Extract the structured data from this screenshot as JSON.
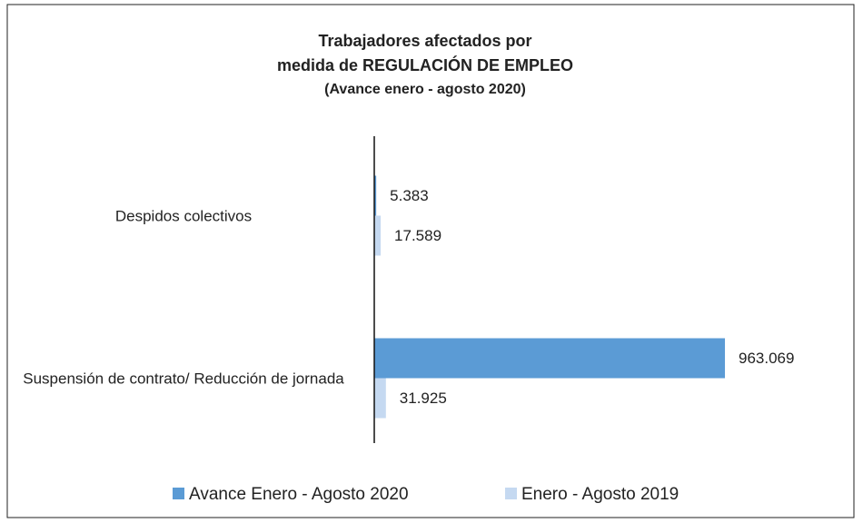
{
  "chart_data": {
    "type": "hbar",
    "title": [
      "Trabajadores afectados por",
      "medida de REGULACIÓN DE EMPLEO"
    ],
    "subtitle": "(Avance enero - agosto 2020)",
    "categories": [
      "Despidos colectivos",
      "Suspensión de contrato/ Reducción de jornada"
    ],
    "series": [
      {
        "name": "Avance Enero - Agosto 2020",
        "color": "#5b9bd5",
        "values": [
          5383,
          963069
        ],
        "value_labels": [
          "5.383",
          "963.069"
        ]
      },
      {
        "name": "Enero - Agosto 2019",
        "color": "#c5d9f1",
        "values": [
          17589,
          31925
        ],
        "value_labels": [
          "17.589",
          "31.925"
        ]
      }
    ],
    "xlim": [
      0,
      1200000
    ],
    "legend": "bottom"
  }
}
